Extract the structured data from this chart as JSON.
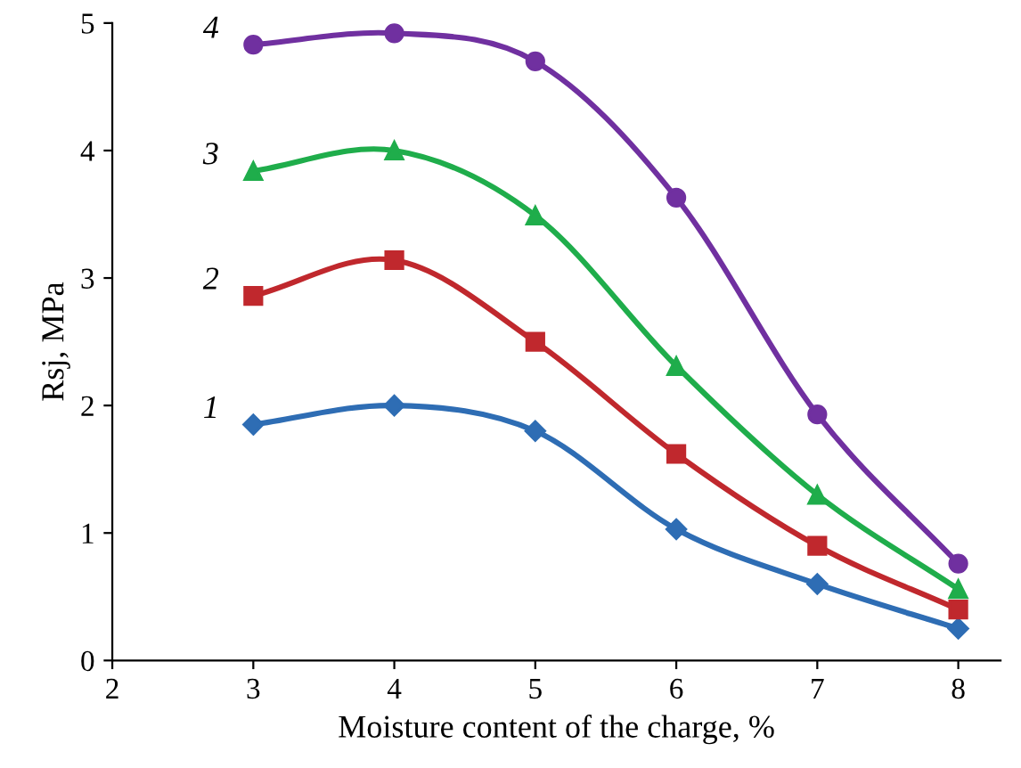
{
  "chart_data": {
    "type": "line",
    "xlabel": "Moisture content of the charge, %",
    "ylabel": "Rsj, MPa",
    "x": [
      3,
      4,
      5,
      6,
      7,
      8
    ],
    "series": [
      {
        "name": "1",
        "color": "#2e6db4",
        "marker": "diamond",
        "values": [
          1.85,
          2.0,
          1.8,
          1.03,
          0.6,
          0.25
        ]
      },
      {
        "name": "2",
        "color": "#c0282d",
        "marker": "square",
        "values": [
          2.86,
          3.14,
          2.5,
          1.62,
          0.9,
          0.4
        ]
      },
      {
        "name": "3",
        "color": "#1fad4b",
        "marker": "triangle",
        "values": [
          3.84,
          4.0,
          3.49,
          2.31,
          1.3,
          0.56
        ]
      },
      {
        "name": "4",
        "color": "#7030a0",
        "marker": "circle",
        "values": [
          4.83,
          4.92,
          4.7,
          3.63,
          1.93,
          0.76
        ]
      }
    ],
    "xlim": [
      2,
      8.3
    ],
    "xticks": [
      2,
      3,
      4,
      5,
      6,
      7,
      8
    ],
    "ylim": [
      0,
      5
    ],
    "yticks": [
      0,
      1,
      2,
      3,
      4,
      5
    ],
    "grid": false,
    "line_style": "solid"
  }
}
